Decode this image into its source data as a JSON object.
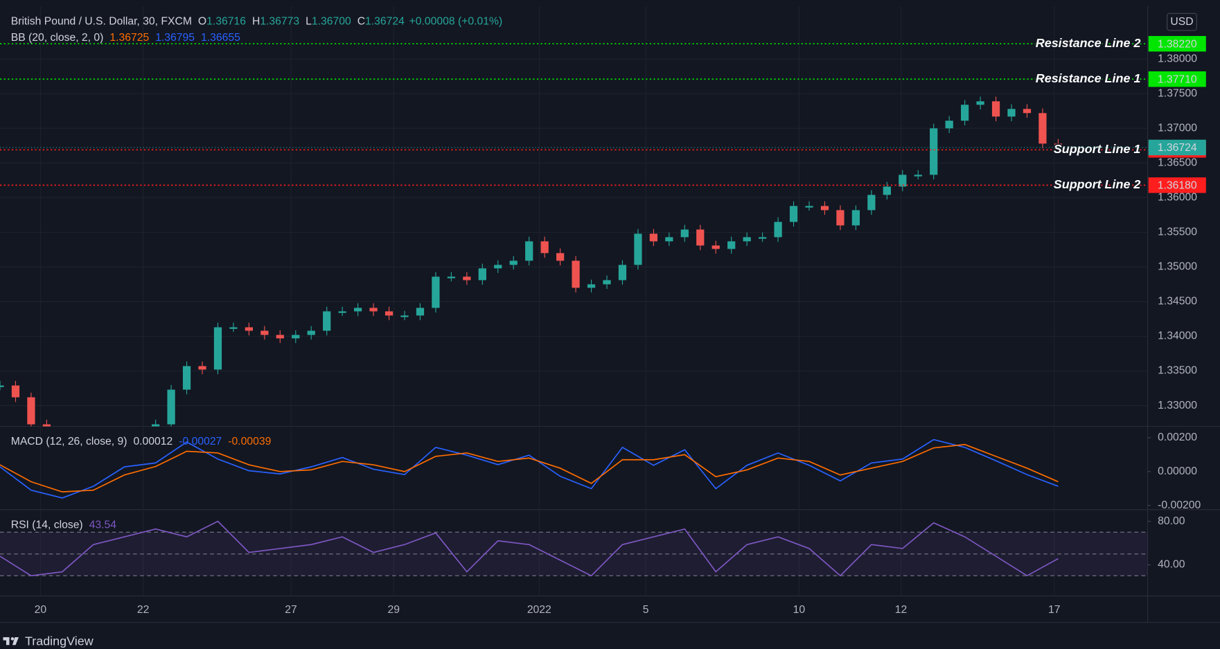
{
  "ui": {
    "currency": "USD",
    "brand": "TradingView"
  },
  "chart_data": [
    {
      "type": "candlestick",
      "title": "British Pound / U.S. Dollar, 30, FXCM",
      "ohlc": [
        {
          "key": "O",
          "value": "1.36716"
        },
        {
          "key": "H",
          "value": "1.36773"
        },
        {
          "key": "L",
          "value": "1.36700"
        },
        {
          "key": "C",
          "value": "1.36724"
        }
      ],
      "change": "+0.00008 (+0.01%)",
      "indicator": {
        "name": "BB (20, close, 2, 0)",
        "values": [
          "1.36725",
          "1.36795",
          "1.36655"
        ],
        "colors": [
          "#ff6d00",
          "#2962ff",
          "#2962ff"
        ]
      },
      "values": [
        1.3329,
        1.3312,
        1.3273,
        1.3256,
        1.325,
        1.3245,
        1.3245,
        1.325,
        1.3256,
        1.3262,
        1.3273,
        1.3323,
        1.3357,
        1.3352,
        1.3413,
        1.3413,
        1.3408,
        1.3402,
        1.3397,
        1.3402,
        1.3408,
        1.3436,
        1.3436,
        1.3441,
        1.3436,
        1.343,
        1.343,
        1.3441,
        1.3486,
        1.3486,
        1.3481,
        1.3498,
        1.3503,
        1.3509,
        1.3537,
        1.352,
        1.3509,
        1.347,
        1.3475,
        1.3481,
        1.3503,
        1.3548,
        1.3537,
        1.3543,
        1.3554,
        1.3531,
        1.3526,
        1.3537,
        1.3543,
        1.3543,
        1.3565,
        1.3588,
        1.3588,
        1.3582,
        1.356,
        1.3582,
        1.3604,
        1.3616,
        1.3633,
        1.3633,
        1.37,
        1.3711,
        1.3734,
        1.3739,
        1.3717,
        1.3728,
        1.3722,
        1.3678,
        1.3672
      ],
      "up_color": "#26a69a",
      "down_color": "#ef5350",
      "xlim": [
        0,
        73.75
      ],
      "xticks": [
        {
          "value": 2.6,
          "label": "20"
        },
        {
          "value": 9.2,
          "label": "22"
        },
        {
          "value": 18.7,
          "label": "27"
        },
        {
          "value": 25.3,
          "label": "29"
        },
        {
          "value": 34.65,
          "label": "2022"
        },
        {
          "value": 41.5,
          "label": "5"
        },
        {
          "value": 51.35,
          "label": "10"
        },
        {
          "value": 57.9,
          "label": "12"
        },
        {
          "value": 67.75,
          "label": "17"
        }
      ],
      "ylim": [
        1.327,
        1.3876
      ],
      "yticks": [
        {
          "value": 1.33,
          "label": "1.33000"
        },
        {
          "value": 1.335,
          "label": "1.33500"
        },
        {
          "value": 1.34,
          "label": "1.34000"
        },
        {
          "value": 1.345,
          "label": "1.34500"
        },
        {
          "value": 1.35,
          "label": "1.35000"
        },
        {
          "value": 1.355,
          "label": "1.35500"
        },
        {
          "value": 1.36,
          "label": "1.36000"
        },
        {
          "value": 1.365,
          "label": "1.36500"
        },
        {
          "value": 1.37,
          "label": "1.37000"
        },
        {
          "value": 1.375,
          "label": "1.37500"
        },
        {
          "value": 1.38,
          "label": "1.38000"
        }
      ],
      "levels": [
        {
          "name": "Resistance Line 2",
          "value": 1.3822,
          "label": "1.38220",
          "color": "#00e600"
        },
        {
          "name": "Resistance Line 1",
          "value": 1.3771,
          "label": "1.37710",
          "color": "#00e600"
        },
        {
          "name": "Support Line 1",
          "value": 1.3669,
          "label": "1.36690",
          "color": "#ff1e1e"
        },
        {
          "name": "Support Line 2",
          "value": 1.3618,
          "label": "1.36180",
          "color": "#ff1e1e"
        }
      ],
      "last_price": {
        "value": 1.36724,
        "label": "1.36724",
        "color": "#26a69a"
      },
      "grid": true
    },
    {
      "type": "line",
      "title": "MACD (12, 26, close, 9)",
      "legend_values": [
        "0.00012",
        "-0.00027",
        "-0.00039"
      ],
      "legend_colors": [
        "#d1d4dc",
        "#2962ff",
        "#ff6d00"
      ],
      "x": [
        0,
        2,
        4,
        6,
        8,
        10,
        12,
        14,
        16,
        18,
        20,
        22,
        24,
        26,
        28,
        30,
        32,
        34,
        36,
        38,
        40,
        42,
        44,
        46,
        48,
        50,
        52,
        54,
        56,
        58,
        60,
        62,
        64,
        66,
        68
      ],
      "series": [
        {
          "color": "#2962ff",
          "values": [
            0.00028,
            -0.0011,
            -0.00156,
            -0.00087,
            0.00028,
            0.00051,
            0.00175,
            0.00074,
            5e-05,
            -0.00014,
            0.00028,
            0.00083,
            0.00014,
            -0.00018,
            0.00143,
            0.00097,
            0.00041,
            0.00097,
            -0.00028,
            -0.00101,
            0.00143,
            0.00037,
            0.00129,
            -0.00101,
            0.00037,
            0.0011,
            0.00037,
            -0.00055,
            0.00051,
            0.00074,
            0.00189,
            0.00143,
            0.00064,
            -0.00018,
            -0.00087
          ]
        },
        {
          "color": "#ff6d00",
          "values": [
            0.0004,
            -0.0006,
            -0.0012,
            -0.0011,
            -0.0002,
            0.0003,
            0.0012,
            0.0011,
            0.0004,
            0,
            0.0001,
            0.0006,
            0.0004,
            0,
            0.0009,
            0.0011,
            0.0006,
            0.0008,
            0.0002,
            -0.0007,
            0.0007,
            0.0007,
            0.001,
            -0.0003,
            0.0001,
            0.0008,
            0.0006,
            -0.0002,
            0.0002,
            0.0006,
            0.0014,
            0.0016,
            0.0009,
            0.0002,
            -0.0006
          ]
        }
      ],
      "ylim": [
        -0.00225,
        0.00267
      ],
      "yticks": [
        {
          "value": 0.002,
          "label": "0.00200"
        },
        {
          "value": 0,
          "label": "0.00000"
        },
        {
          "value": -0.002,
          "label": "-0.00200"
        }
      ]
    },
    {
      "type": "line",
      "title": "RSI (14, close)",
      "legend_values": [
        "43.54"
      ],
      "legend_colors": [
        "#7e57c2"
      ],
      "x": [
        0,
        2,
        4,
        6,
        8,
        10,
        12,
        14,
        16,
        18,
        20,
        22,
        24,
        26,
        28,
        30,
        32,
        34,
        36,
        38,
        40,
        42,
        44,
        46,
        48,
        50,
        52,
        54,
        56,
        58,
        60,
        62,
        64,
        66,
        68
      ],
      "series": [
        {
          "color": "#7e57c2",
          "values": [
            47.9,
            30.0,
            33.6,
            58.6,
            65.7,
            72.9,
            65.7,
            80.0,
            51.4,
            55.0,
            58.6,
            65.7,
            51.4,
            58.6,
            69.3,
            33.6,
            62.1,
            58.6,
            44.3,
            30.0,
            58.6,
            65.7,
            72.9,
            33.6,
            58.6,
            65.7,
            55.0,
            30.0,
            58.6,
            55.0,
            78.6,
            65.7,
            47.9,
            30.0,
            45.7
          ]
        }
      ],
      "levels": [
        70,
        50,
        30
      ],
      "ylim": [
        12.1,
        90.7
      ],
      "yticks": [
        {
          "value": 80,
          "label": "80.00"
        },
        {
          "value": 40,
          "label": "40.00"
        }
      ]
    }
  ]
}
